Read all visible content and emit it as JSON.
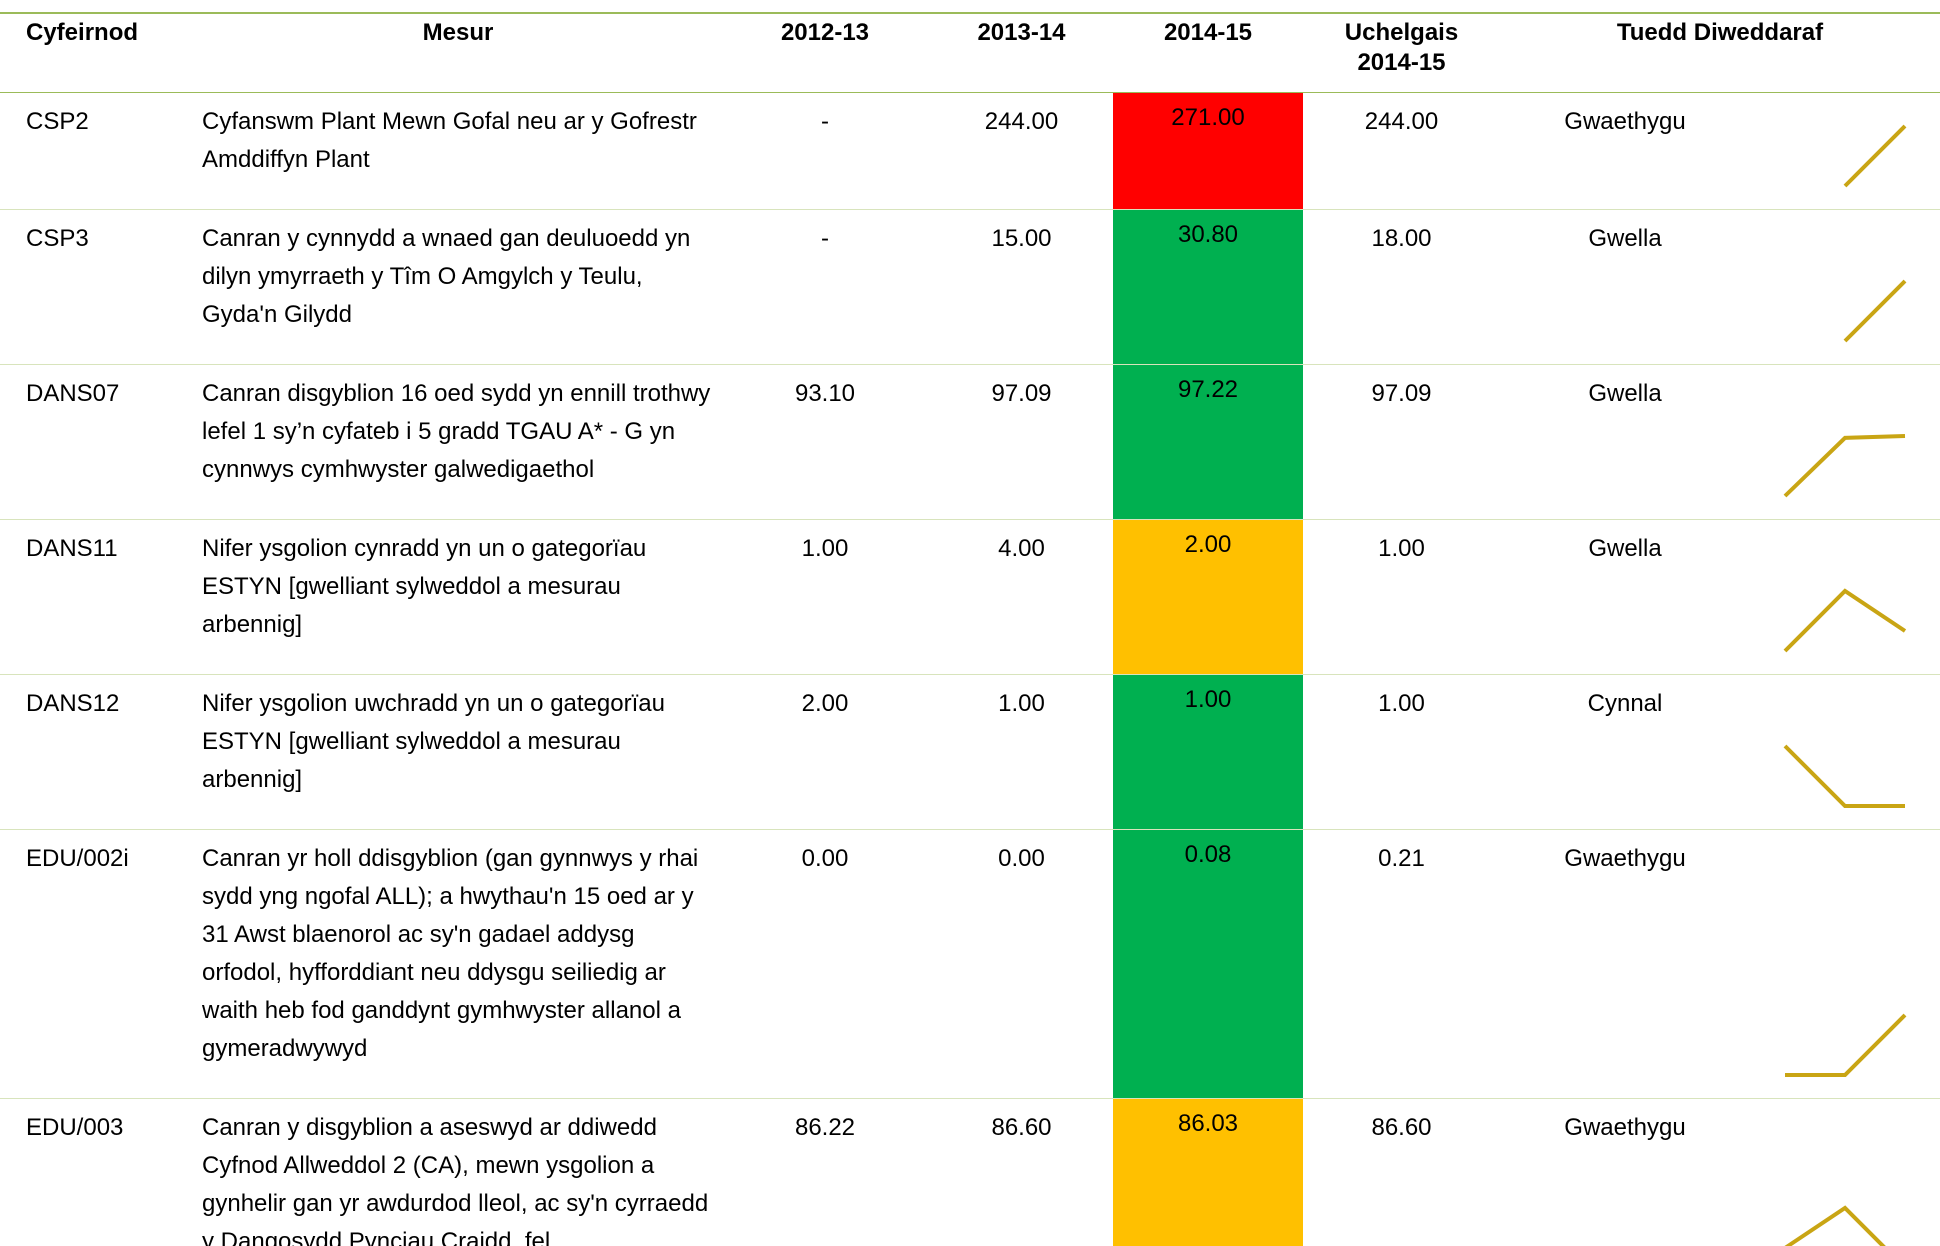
{
  "table": {
    "headers": [
      "Cyfeirnod",
      "Mesur",
      "2012-13",
      "2013-14",
      "2014-15",
      "Uchelgais 2014-15",
      "Tuedd Diweddaraf"
    ],
    "rows": [
      {
        "ref": "CSP2",
        "measure": "Cyfanswm Plant Mewn Gofal neu ar y Gofrestr Amddiffyn Plant",
        "values": [
          "-",
          "244.00",
          "271.00"
        ],
        "target": "244.00",
        "trend": "Gwaethygu",
        "color": "#ff0000"
      },
      {
        "ref": "CSP3",
        "measure": "Canran y cynnydd a wnaed gan deuluoedd yn dilyn ymyrraeth y Tîm O Amgylch y Teulu, Gyda'n Gilydd",
        "values": [
          "-",
          "15.00",
          "30.80"
        ],
        "target": "18.00",
        "trend": "Gwella",
        "color": "#00b050"
      },
      {
        "ref": "DANS07",
        "measure": "Canran disgyblion 16 oed sydd yn ennill trothwy lefel 1 sy’n cyfateb i 5 gradd TGAU A* - G yn cynnwys cymhwyster galwedigaethol",
        "values": [
          "93.10",
          "97.09",
          "97.22"
        ],
        "target": "97.09",
        "trend": "Gwella",
        "color": "#00b050"
      },
      {
        "ref": "DANS11",
        "measure": "Nifer ysgolion cynradd yn un o gategorïau ESTYN [gwelliant sylweddol a mesurau arbennig]",
        "values": [
          "1.00",
          "4.00",
          "2.00"
        ],
        "target": "1.00",
        "trend": "Gwella",
        "color": "#ffc000"
      },
      {
        "ref": "DANS12",
        "measure": "Nifer ysgolion uwchradd yn un o gategorïau ESTYN [gwelliant sylweddol a mesurau arbennig]",
        "values": [
          "2.00",
          "1.00",
          "1.00"
        ],
        "target": "1.00",
        "trend": "Cynnal",
        "color": "#00b050"
      },
      {
        "ref": "EDU/002i",
        "measure": "Canran yr holl ddisgyblion (gan gynnwys y rhai sydd yng ngofal ALL); a hwythau'n 15 oed ar y 31 Awst blaenorol ac sy'n gadael addysg orfodol, hyfforddiant neu ddysgu seiliedig ar waith heb fod ganddynt gymhwyster allanol a gymeradwywyd",
        "values": [
          "0.00",
          "0.00",
          "0.08"
        ],
        "target": "0.21",
        "trend": "Gwaethygu",
        "color": "#00b050"
      },
      {
        "ref": "EDU/003",
        "measure": "Canran y disgyblion a aseswyd ar ddiwedd Cyfnod Allweddol 2 (CA), mewn ysgolion a gynhelir gan yr awdurdod lleol, ac sy'n cyrraedd y Dangosydd Pynciau Craidd, fel",
        "values": [
          "86.22",
          "86.60",
          "86.03"
        ],
        "target": "86.60",
        "trend": "Gwaethygu",
        "color": "#ffc000"
      }
    ],
    "spark_color": "#c9a514"
  }
}
